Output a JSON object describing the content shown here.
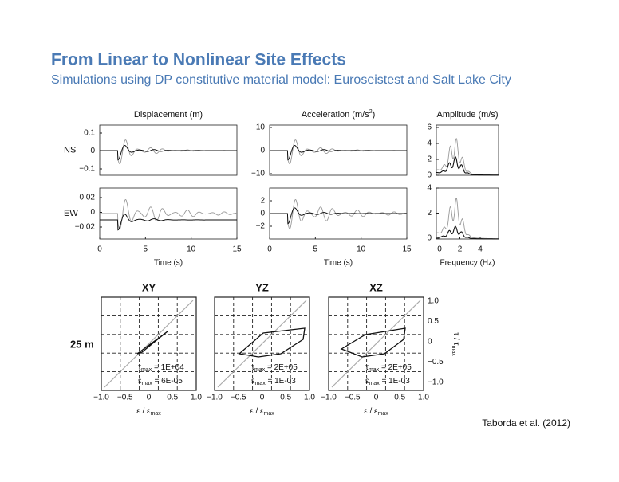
{
  "header": {
    "title": "From Linear to Nonlinear Site Effects",
    "subtitle": "Simulations using DP constitutive material model: Euroseistest and Salt Lake City"
  },
  "figure": {
    "row_labels": [
      "NS",
      "EW"
    ],
    "top_panels": [
      {
        "title": "Displacement (m)",
        "ns_ticks": [
          "0.1",
          "0",
          "−0.1"
        ],
        "ew_ticks": [
          "0.02",
          "0",
          "−0.02"
        ],
        "x_ticks": [
          "0",
          "5",
          "10",
          "15"
        ],
        "x_label": "Time (s)"
      },
      {
        "title": {
          "text": "Acceleration (m/s",
          "sup": "2",
          "after": ")"
        },
        "ns_ticks": [
          "10",
          "0",
          "−10"
        ],
        "ew_ticks": [
          "2",
          "0",
          "−2"
        ],
        "x_ticks": [
          "0",
          "5",
          "10",
          "15"
        ],
        "x_label": "Time (s)"
      },
      {
        "title": "Amplitude (m/s)",
        "ns_ticks": [
          "6",
          "4",
          "2",
          "0"
        ],
        "ew_ticks": [
          "4",
          "2",
          "0"
        ],
        "x_ticks": [
          "0",
          "2",
          "4"
        ],
        "x_label": "Frequency (Hz)"
      }
    ],
    "depth_label": "25 m",
    "bottom_panels": [
      {
        "title": "XY",
        "tau": {
          "symbol": "τ",
          "sub": "max",
          "text": " = 1E+04"
        },
        "eps": {
          "symbol": "ε",
          "sub": "max",
          "text": " = 6E-05"
        }
      },
      {
        "title": "YZ",
        "tau": {
          "symbol": "τ",
          "sub": "max",
          "text": " = 2E+05"
        },
        "eps": {
          "symbol": "ε",
          "sub": "max",
          "text": " = 1E-03"
        }
      },
      {
        "title": "XZ",
        "tau": {
          "symbol": "τ",
          "sub": "max",
          "text": " = 2E+05"
        },
        "eps": {
          "symbol": "ε",
          "sub": "max",
          "text": " = 1E-03"
        }
      }
    ],
    "bottom_x_ticks": [
      "−1.0",
      "−0.5",
      "0",
      "0.5",
      "1.0"
    ],
    "bottom_x_label": {
      "text": "ε / ε",
      "sub": "max"
    },
    "right_ticks": [
      "1.0",
      "0.5",
      "0",
      "−0.5",
      "−1.0"
    ],
    "right_label": {
      "text": "τ / τ",
      "sub": "max"
    }
  },
  "credit": "Taborda et al. (2012)"
}
